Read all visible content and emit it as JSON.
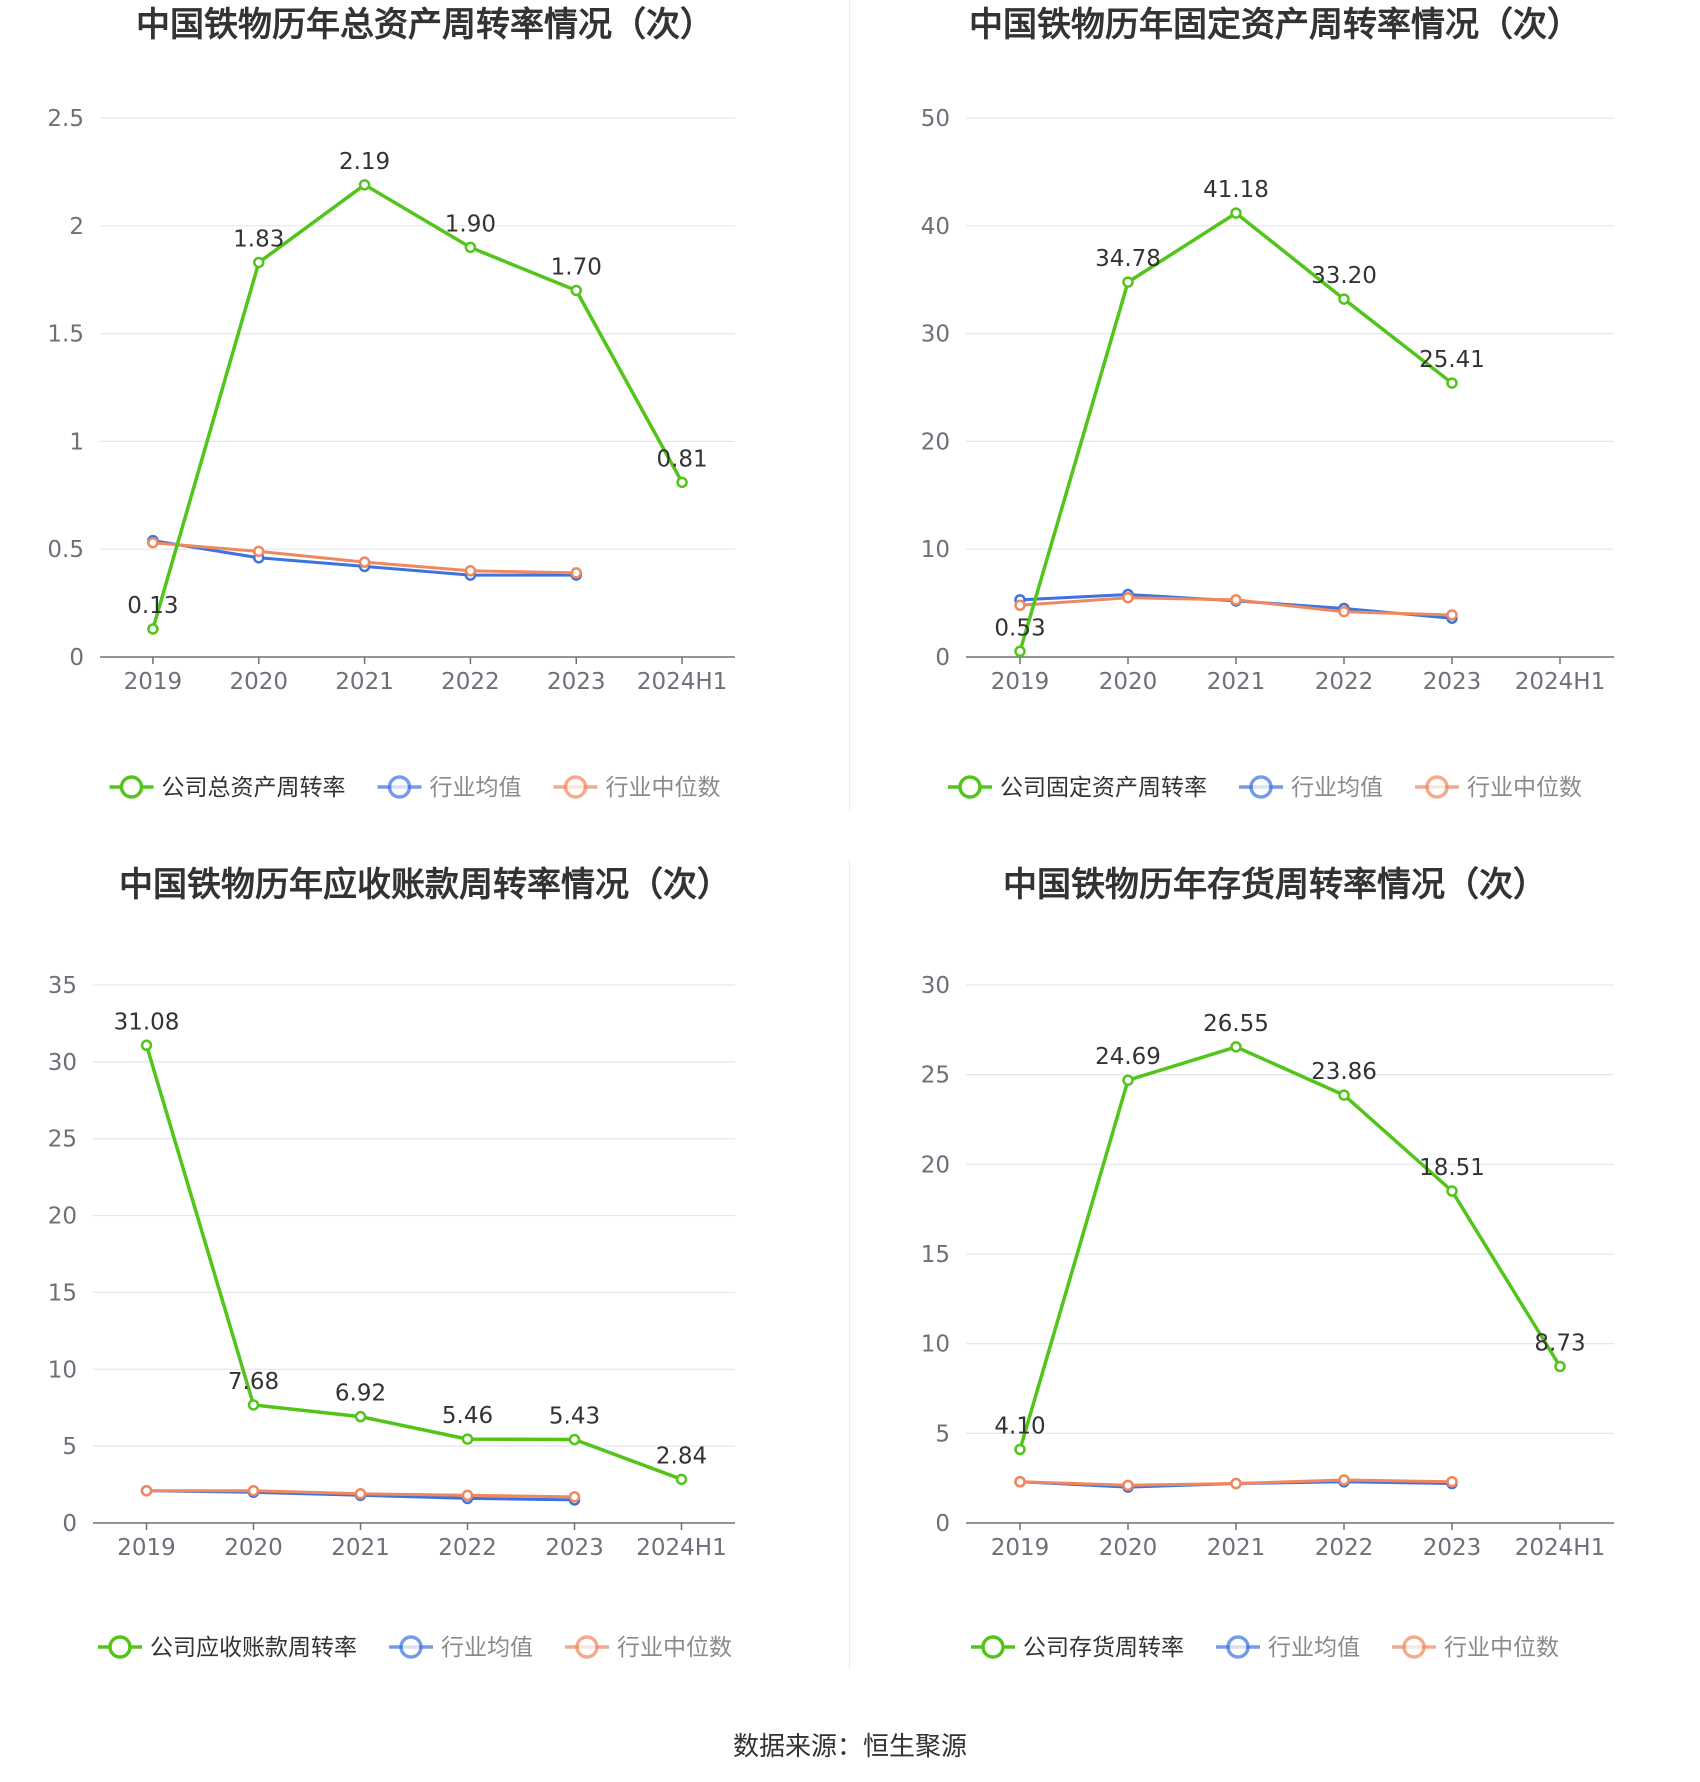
{
  "source_label": "数据来源：恒生聚源",
  "colors": {
    "company": "#52c41a",
    "avg": "#3b73e0",
    "median": "#f0875e",
    "grid": "#e3e6ef",
    "axis": "#6e7079",
    "title": "#333333"
  },
  "chart_data": [
    {
      "type": "line",
      "title": "中国铁物历年总资产周转率情况（次）",
      "categories": [
        "2019",
        "2020",
        "2021",
        "2022",
        "2023",
        "2024H1"
      ],
      "yticks": [
        "0",
        "0.5",
        "1",
        "1.5",
        "2",
        "2.5"
      ],
      "ylim": [
        0,
        2.5
      ],
      "grid": true,
      "legend_position": "bottom",
      "series": [
        {
          "name": "公司总资产周转率",
          "values": [
            0.13,
            1.83,
            2.19,
            1.9,
            1.7,
            0.81
          ],
          "labels": [
            "0.13",
            "1.83",
            "2.19",
            "1.90",
            "1.70",
            "0.81"
          ]
        },
        {
          "name": "行业均值",
          "values": [
            0.54,
            0.46,
            0.42,
            0.38,
            0.38,
            null
          ]
        },
        {
          "name": "行业中位数",
          "values": [
            0.53,
            0.49,
            0.44,
            0.4,
            0.39,
            null
          ]
        }
      ]
    },
    {
      "type": "line",
      "title": "中国铁物历年固定资产周转率情况（次）",
      "categories": [
        "2019",
        "2020",
        "2021",
        "2022",
        "2023",
        "2024H1"
      ],
      "yticks": [
        "0",
        "10",
        "20",
        "30",
        "40",
        "50"
      ],
      "ylim": [
        0,
        50
      ],
      "grid": true,
      "legend_position": "bottom",
      "series": [
        {
          "name": "公司固定资产周转率",
          "values": [
            0.53,
            34.78,
            41.18,
            33.2,
            25.41,
            null
          ],
          "labels": [
            "0.53",
            "34.78",
            "41.18",
            "33.20",
            "25.41",
            ""
          ]
        },
        {
          "name": "行业均值",
          "values": [
            5.3,
            5.8,
            5.2,
            4.5,
            3.6,
            null
          ]
        },
        {
          "name": "行业中位数",
          "values": [
            4.8,
            5.5,
            5.3,
            4.2,
            3.9,
            null
          ]
        }
      ]
    },
    {
      "type": "line",
      "title": "中国铁物历年应收账款周转率情况（次）",
      "categories": [
        "2019",
        "2020",
        "2021",
        "2022",
        "2023",
        "2024H1"
      ],
      "yticks": [
        "0",
        "5",
        "10",
        "15",
        "20",
        "25",
        "30",
        "35"
      ],
      "ylim": [
        0,
        35
      ],
      "grid": true,
      "legend_position": "bottom",
      "series": [
        {
          "name": "公司应收账款周转率",
          "values": [
            31.08,
            7.68,
            6.92,
            5.46,
            5.43,
            2.84
          ],
          "labels": [
            "31.08",
            "7.68",
            "6.92",
            "5.46",
            "5.43",
            "2.84"
          ]
        },
        {
          "name": "行业均值",
          "values": [
            2.1,
            2.0,
            1.8,
            1.6,
            1.5,
            null
          ]
        },
        {
          "name": "行业中位数",
          "values": [
            2.1,
            2.1,
            1.9,
            1.8,
            1.7,
            null
          ]
        }
      ]
    },
    {
      "type": "line",
      "title": "中国铁物历年存货周转率情况（次）",
      "categories": [
        "2019",
        "2020",
        "2021",
        "2022",
        "2023",
        "2024H1"
      ],
      "yticks": [
        "0",
        "5",
        "10",
        "15",
        "20",
        "25",
        "30"
      ],
      "ylim": [
        0,
        30
      ],
      "grid": true,
      "legend_position": "bottom",
      "series": [
        {
          "name": "公司存货周转率",
          "values": [
            4.1,
            24.69,
            26.55,
            23.86,
            18.51,
            8.73
          ],
          "labels": [
            "4.10",
            "24.69",
            "26.55",
            "23.86",
            "18.51",
            "8.73"
          ]
        },
        {
          "name": "行业均值",
          "values": [
            2.3,
            2.0,
            2.2,
            2.3,
            2.2,
            null
          ]
        },
        {
          "name": "行业中位数",
          "values": [
            2.3,
            2.1,
            2.2,
            2.4,
            2.3,
            null
          ]
        }
      ]
    }
  ]
}
